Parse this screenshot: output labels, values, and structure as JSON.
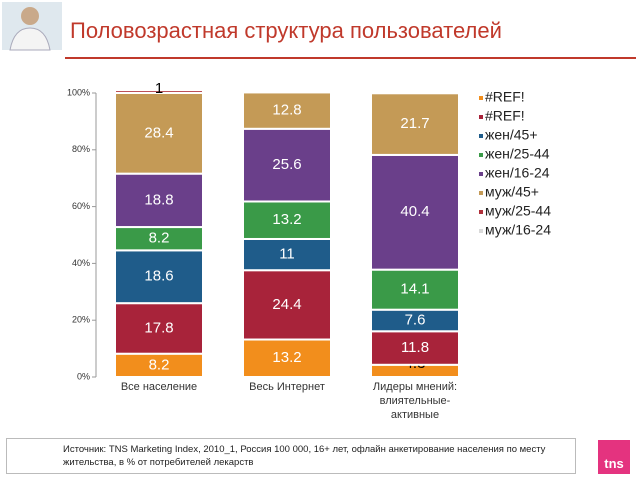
{
  "chart_data": {
    "type": "stacked-bar",
    "title": "Половозрастная структура пользователей",
    "categories": [
      "Все население",
      "Весь Интернет",
      "Лидеры мнений:\nвлиятельные-\nактивные"
    ],
    "series": [
      {
        "name": "#REF!",
        "color": "#f28e1c",
        "values": [
          8.2,
          13.2,
          4.3
        ]
      },
      {
        "name": "#REF!",
        "color": "#a8233a",
        "values": [
          17.8,
          24.4,
          11.8
        ]
      },
      {
        "name": "жен/45+",
        "color": "#1f5c8a",
        "values": [
          18.6,
          11,
          7.6
        ]
      },
      {
        "name": "жен/25-44",
        "color": "#3a9a48",
        "values": [
          8.2,
          13.2,
          14.1
        ]
      },
      {
        "name": "жен/16-24",
        "color": "#6a3f8a",
        "values": [
          18.8,
          25.6,
          40.4
        ]
      },
      {
        "name": "муж/45+",
        "color": "#c49a56",
        "values": [
          28.4,
          12.8,
          21.7
        ]
      },
      {
        "name": "муж/25-44",
        "color": "#b0303a",
        "values": [
          1,
          null,
          null
        ]
      },
      {
        "name": "муж/16-24",
        "color": "#d9d9d9",
        "values": [
          null,
          null,
          null
        ]
      }
    ],
    "ylim": [
      0,
      100
    ],
    "yticks": [
      {
        "value": 0,
        "label": "0%"
      },
      {
        "value": 20,
        "label": "20%"
      },
      {
        "value": 40,
        "label": "40%"
      },
      {
        "value": 60,
        "label": "60%"
      },
      {
        "value": 80,
        "label": "80%"
      },
      {
        "value": 100,
        "label": "100%"
      }
    ]
  },
  "source": "Источник: TNS Marketing Index, 2010_1, Россия 100 000, 16+ лет, офлайн анкетирование населения по месту жительства, в % от потребителей лекарств",
  "logo": "tns"
}
